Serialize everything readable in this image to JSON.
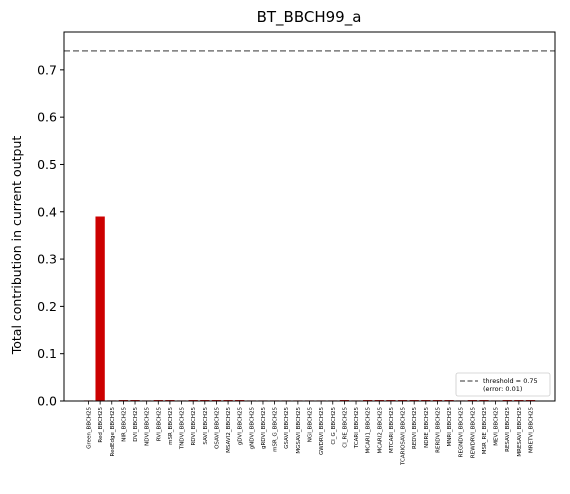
{
  "chart_data": {
    "type": "bar",
    "title": "BT_BBCH99_a",
    "xlabel": "",
    "ylabel": "Total contribution in current output",
    "ylim": [
      0,
      0.78
    ],
    "yticks": [
      "0.0",
      "0.1",
      "0.2",
      "0.3",
      "0.4",
      "0.5",
      "0.6",
      "0.7"
    ],
    "ytick_values": [
      0,
      0.1,
      0.2,
      0.3,
      0.4,
      0.5,
      0.6,
      0.7
    ],
    "grid": false,
    "bar_color": "#cc0000",
    "threshold_line": {
      "value": 0.74,
      "color": "#777777",
      "style": "dashed",
      "legend_line1": "threshold = 0.75",
      "legend_line2": "(error: 0.01)",
      "legend_position": "lower-right"
    },
    "categories": [
      "Green_BBCH25",
      "Red_BBCH25",
      "RedEdge_BBCH25",
      "NIR_BBCH25",
      "DVI_BBCH25",
      "NDVI_BBCH25",
      "RVI_BBCH25",
      "mSR_BBCH25",
      "TNDVI_BBCH25",
      "RDVI_BBCH25",
      "SAVI_BBCH25",
      "OSAVI_BBCH25",
      "MSAVI2_BBCH25",
      "gDVI_BBCH25",
      "gNDVI_BBCH25",
      "gRDVI_BBCH25",
      "mSR_G_BBCH25",
      "GSAVI_BBCH25",
      "MGSAVI_BBCH25",
      "NGI_BBCH25",
      "GWDRVI_BBCH25",
      "CI_G_BBCH25",
      "CI_RE_BBCH25",
      "TCARI_BBCH25",
      "MCARI1_BBCH25",
      "MCARI2_BBCH25",
      "MTCARI_BBCH25",
      "TCARIOSAVI_BBCH25",
      "REDVI_BBCH25",
      "NDRE_BBCH25",
      "RERDVI_BBCH25",
      "MNRI_BBCH25",
      "REGNDVI_BBCH25",
      "REWDRVI_BBCH25",
      "MSR_RE_BBCH25",
      "MEVI_BBCH25",
      "RESAVI_BBCH25",
      "MRESAVI_BBCH25",
      "MRETVI_BBCH25"
    ],
    "values": [
      0.001,
      0.39,
      0.0005,
      0.002,
      0.002,
      0.001,
      0.002,
      0.002,
      0.0005,
      0.002,
      0.002,
      0.002,
      0.002,
      0.002,
      0.0005,
      0.0005,
      0.0005,
      0.0005,
      0.0005,
      0.0005,
      0.0005,
      0.0005,
      0.002,
      0.0005,
      0.002,
      0.002,
      0.002,
      0.002,
      0.002,
      0.002,
      0.002,
      0.002,
      0.001,
      0.002,
      0.002,
      0.001,
      0.002,
      0.002,
      0.002
    ]
  }
}
